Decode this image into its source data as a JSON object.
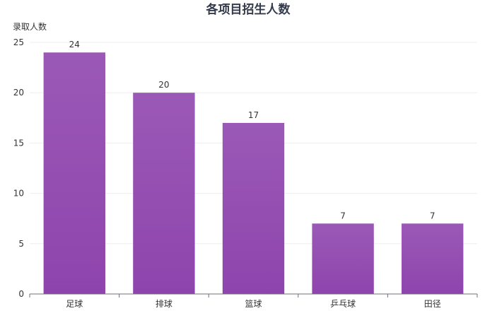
{
  "chart_data": {
    "type": "bar",
    "title": "各项目招生人数",
    "ylabel": "录取人数",
    "xlabel": "",
    "categories": [
      "足球",
      "排球",
      "篮球",
      "乒乓球",
      "田径"
    ],
    "values": [
      24,
      20,
      17,
      7,
      7
    ],
    "ylim": [
      0,
      25
    ],
    "yticks": [
      0,
      5,
      10,
      15,
      20,
      25
    ],
    "grid": true,
    "legend": "none",
    "bar_color_top": "#9b59b6",
    "bar_color_bottom": "#8e44ad"
  }
}
